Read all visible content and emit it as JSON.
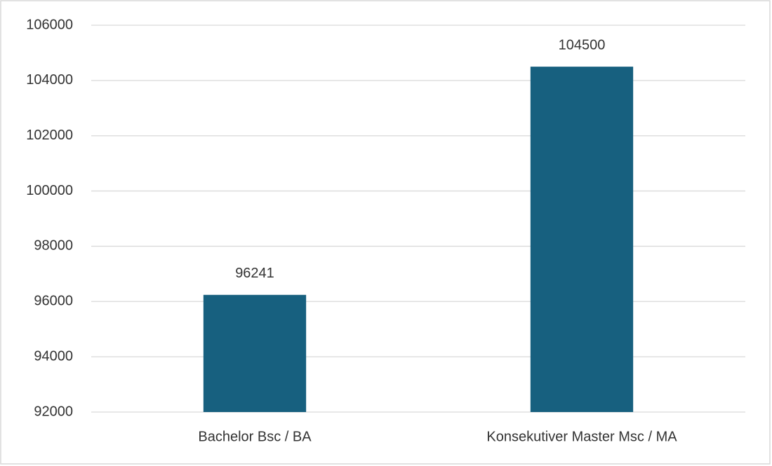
{
  "chart_data": {
    "type": "bar",
    "categories": [
      "Bachelor Bsc / BA",
      "Konsekutiver Master Msc / MA"
    ],
    "values": [
      96241,
      104500
    ],
    "color": "#17607f",
    "ylim": [
      92000,
      106000
    ],
    "yticks": [
      92000,
      94000,
      96000,
      98000,
      100000,
      102000,
      104000,
      106000
    ],
    "grid": true
  }
}
